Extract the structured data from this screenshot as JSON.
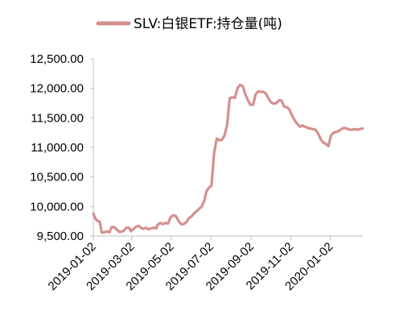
{
  "chart_data": {
    "type": "line",
    "title": "",
    "xlabel": "",
    "ylabel": "",
    "ylim": [
      9500,
      12500
    ],
    "yticks": [
      "12,500.00",
      "12,000.00",
      "11,500.00",
      "11,000.00",
      "10,500.00",
      "10,000.00",
      "9,500.00"
    ],
    "ytick_values": [
      12500,
      12000,
      11500,
      11000,
      10500,
      10000,
      9500
    ],
    "xlim": [
      "2019-01-02",
      "2020-02-21"
    ],
    "xticks": [
      "2019-01-02",
      "2019-03-02",
      "2019-05-02",
      "2019-07-02",
      "2019-09-02",
      "2019-11-02",
      "2020-01-02"
    ],
    "grid": false,
    "legend_position": "top",
    "color": "#d4908e",
    "series": [
      {
        "name": "SLV:白银ETF:持仓量(吨)",
        "x": [
          "2019-01-02",
          "2019-01-06",
          "2019-01-08",
          "2019-01-12",
          "2019-01-15",
          "2019-01-19",
          "2019-01-23",
          "2019-01-27",
          "2019-01-30",
          "2019-02-03",
          "2019-02-07",
          "2019-02-11",
          "2019-02-14",
          "2019-02-18",
          "2019-02-22",
          "2019-02-26",
          "2019-03-01",
          "2019-03-05",
          "2019-03-09",
          "2019-03-13",
          "2019-03-16",
          "2019-03-20",
          "2019-03-24",
          "2019-03-28",
          "2019-04-01",
          "2019-04-05",
          "2019-04-09",
          "2019-04-11",
          "2019-04-15",
          "2019-04-19",
          "2019-04-23",
          "2019-04-27",
          "2019-05-01",
          "2019-05-05",
          "2019-05-09",
          "2019-05-13",
          "2019-05-17",
          "2019-05-21",
          "2019-05-25",
          "2019-05-29",
          "2019-06-02",
          "2019-06-06",
          "2019-06-10",
          "2019-06-14",
          "2019-06-18",
          "2019-06-22",
          "2019-06-25",
          "2019-06-29",
          "2019-07-03",
          "2019-07-07",
          "2019-07-11",
          "2019-07-15",
          "2019-07-19",
          "2019-07-23",
          "2019-07-27",
          "2019-07-31",
          "2019-08-04",
          "2019-08-08",
          "2019-08-12",
          "2019-08-16",
          "2019-08-20",
          "2019-08-24",
          "2019-08-28",
          "2019-09-01",
          "2019-09-05",
          "2019-09-09",
          "2019-09-13",
          "2019-09-17",
          "2019-09-21",
          "2019-09-25",
          "2019-09-29",
          "2019-10-03",
          "2019-10-07",
          "2019-10-11",
          "2019-10-15",
          "2019-10-19",
          "2019-10-23",
          "2019-10-27",
          "2019-10-31",
          "2019-11-04",
          "2019-11-08",
          "2019-11-12",
          "2019-11-16",
          "2019-11-20",
          "2019-11-24",
          "2019-11-28",
          "2019-12-02",
          "2019-12-06",
          "2019-12-10",
          "2019-12-14",
          "2019-12-18",
          "2019-12-22",
          "2019-12-26",
          "2019-12-30",
          "2020-01-03",
          "2020-01-07",
          "2020-01-11",
          "2020-01-15",
          "2020-01-19",
          "2020-01-23",
          "2020-01-27",
          "2020-01-31",
          "2020-02-04",
          "2020-02-08",
          "2020-02-12",
          "2020-02-16",
          "2020-02-21"
        ],
        "values": [
          9880,
          9780,
          9760,
          9740,
          9560,
          9560,
          9580,
          9560,
          9650,
          9650,
          9610,
          9570,
          9570,
          9590,
          9640,
          9640,
          9580,
          9620,
          9660,
          9670,
          9640,
          9620,
          9640,
          9610,
          9630,
          9640,
          9630,
          9690,
          9720,
          9700,
          9720,
          9710,
          9820,
          9850,
          9840,
          9760,
          9700,
          9700,
          9730,
          9800,
          9830,
          9880,
          9920,
          9960,
          10000,
          10100,
          10250,
          10320,
          10350,
          10900,
          11150,
          11120,
          11130,
          11200,
          11380,
          11830,
          11850,
          11840,
          12000,
          12060,
          12040,
          11900,
          11800,
          11720,
          11720,
          11900,
          11950,
          11940,
          11940,
          11910,
          11820,
          11760,
          11740,
          11750,
          11800,
          11790,
          11690,
          11680,
          11640,
          11540,
          11460,
          11400,
          11350,
          11370,
          11350,
          11330,
          11320,
          11310,
          11300,
          11240,
          11140,
          11080,
          11060,
          11020,
          11200,
          11250,
          11260,
          11280,
          11310,
          11330,
          11320,
          11300,
          11300,
          11310,
          11300,
          11310,
          11320
        ]
      }
    ]
  }
}
